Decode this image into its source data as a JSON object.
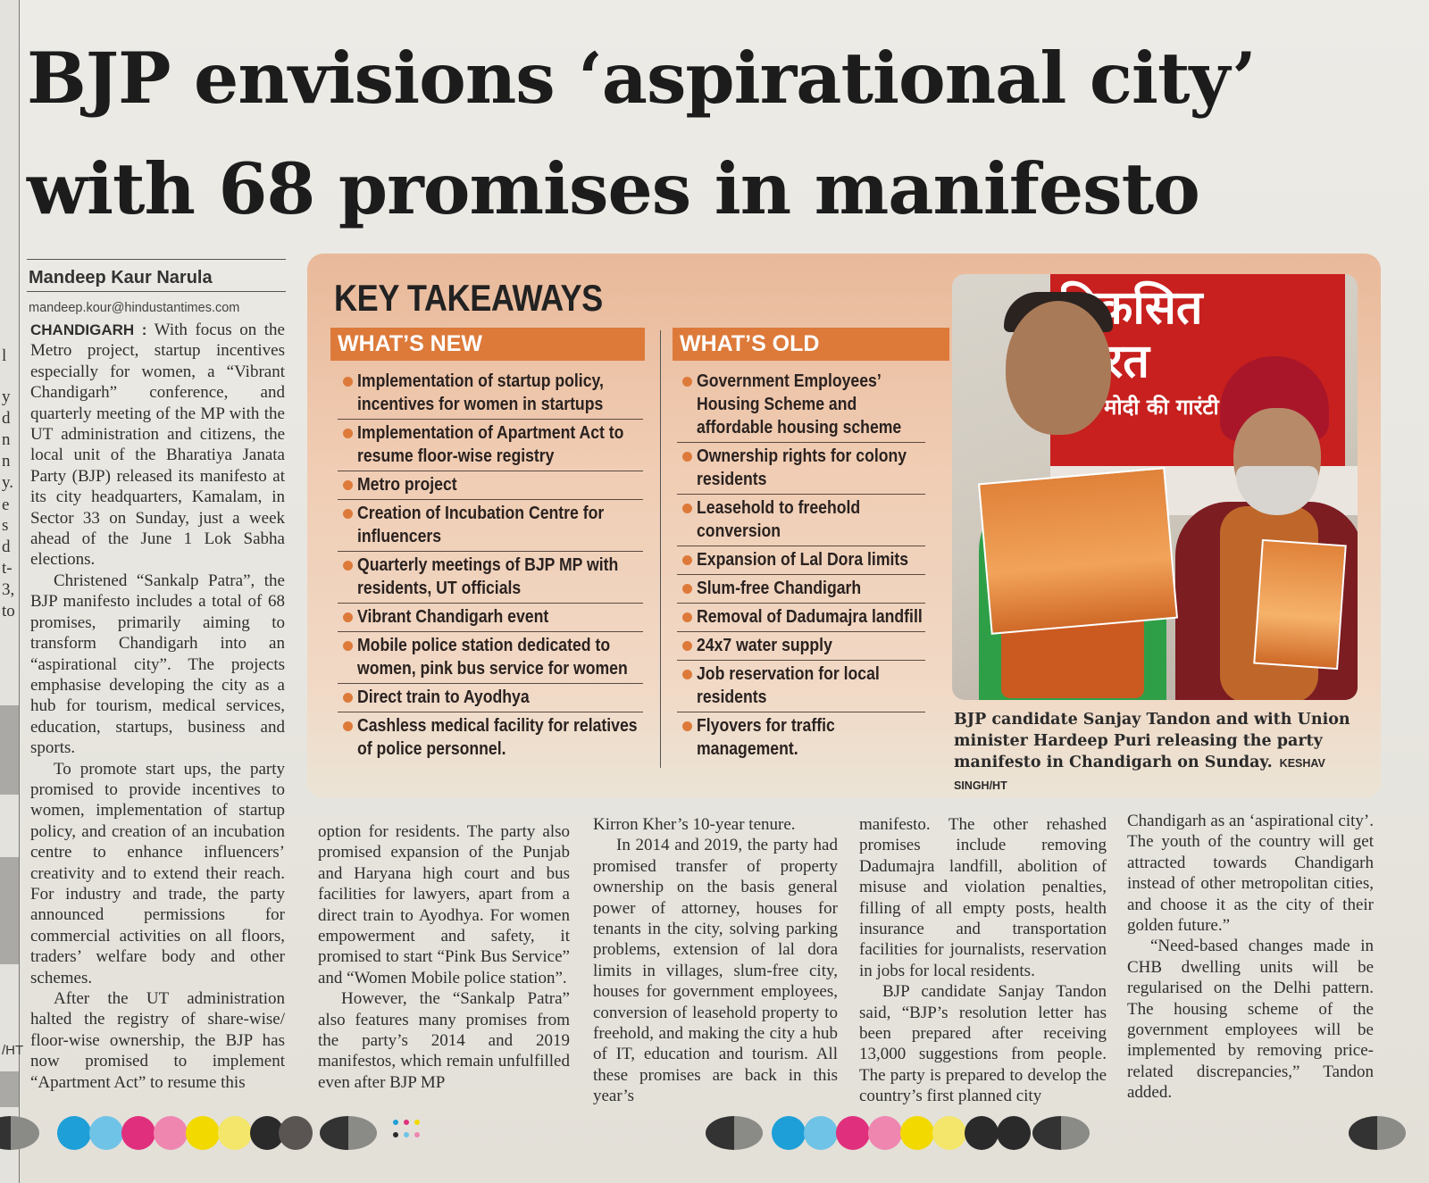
{
  "headline": {
    "line1": "BJP envisions ‘aspirational city’",
    "line2": "with 68 promises in manifesto"
  },
  "byline": {
    "name": "Mandeep Kaur Narula",
    "email": "mandeep.kour@hindustantimes.com"
  },
  "article": {
    "dateline": "CHANDIGARH :",
    "col1": [
      "With focus on the Metro project, startup incentives especially for women, a “Vibrant Chandigarh” conference, and quarterly meeting of the MP with the UT administration and citizens, the local unit of the Bharatiya Janata Party (BJP) released its manifesto at its city headquarters, Kamalam, in Sector 33 on Sunday, just a week ahead of the June 1 Lok Sabha elections.",
      "Christened “Sankalp Patra”, the BJP manifesto includes a total of 68 promises, primarily aiming to transform Chandigarh into an “aspirational city”. The projects emphasise developing the city as a hub for tourism, medical services, education, startups, business and sports.",
      "To promote start ups, the party promised to provide incentives to women, implementation of startup policy, and creation of an incubation centre to enhance influencers’ creativity and to extend their reach. For industry and trade, the party announced permissions for commercial activities on all floors, traders’ welfare body and other schemes.",
      "After the UT administration halted the registry of share-wise/ floor-wise ownership, the BJP has now promised to implement “Apartment Act” to resume this"
    ],
    "col2": [
      "option for residents. The party also promised expansion of the Punjab and Haryana high court and bus facilities for lawyers, apart from a direct train to Ayodhya. For women empowerment and safety, it promised to start “Pink Bus Service” and “Women Mobile police station”.",
      "However, the “Sankalp Patra” also features many promises from the party’s 2014 and 2019 manifestos, which remain unfulfilled even after BJP MP"
    ],
    "col3": [
      "Kirron Kher’s 10-year tenure.",
      "In 2014 and 2019, the party had promised transfer of property ownership on the basis general power of attorney, houses for tenants in the city, solving parking problems, extension of lal dora limits in villages, slum-free city, houses for government employees, conversion of leasehold property to freehold, and making the city a hub of IT, education and tourism. All these promises are back in this year’s"
    ],
    "col4": [
      "manifesto. The other rehashed promises include removing Dadumajra landfill, abolition of misuse and violation penalties, filling of all empty posts, health insurance and transportation facilities for journalists, reservation in jobs for local residents.",
      "BJP candidate Sanjay Tandon said, “BJP’s resolution letter has been prepared after receiving 13,000 suggestions from people. The party is prepared to develop the country’s first planned city"
    ],
    "col5": [
      "Chandigarh as an ‘aspirational city’. The youth of the country will get attracted towards Chandigarh instead of other metropolitan cities, and choose it as the city of their golden future.”",
      "“Need-based changes made in CHB dwelling units will be regularised on the Delhi pattern. The housing scheme of the government employees will be implemented by removing price-related discrepancies,” Tandon added."
    ]
  },
  "takeaways": {
    "title": "KEY TAKEAWAYS",
    "new_heading": "WHAT’S NEW",
    "old_heading": "WHAT’S OLD",
    "new_items": [
      "Implementation of startup policy, incentives for women in startups",
      "Implementation of Apartment Act to resume floor-wise registry",
      "Metro project",
      "Creation of Incubation Centre for influencers",
      "Quarterly meetings of BJP MP with residents, UT officials",
      "Vibrant Chandigarh event",
      "Mobile police station dedicated to women, pink bus service for women",
      "Direct train to Ayodhya",
      "Cashless medical facility for relatives of police personnel."
    ],
    "old_items": [
      "Government Employees’ Housing Scheme and affordable housing scheme",
      "Ownership rights for colony residents",
      "Leasehold to freehold conversion",
      "Expansion of Lal Dora limits",
      "Slum-free Chandigarh",
      "Removal of Dadumajra landfill",
      "24x7 water supply",
      "Job reservation for local residents",
      "Flyovers for traffic management."
    ],
    "accent_color": "#dd7a3a"
  },
  "photo": {
    "banner_line1": "विकसित",
    "banner_line2": "भारत",
    "banner_line3": "मोदी की गारंटी",
    "caption": "BJP candidate Sanjay Tandon and with Union minister Hardeep Puri releasing the party manifesto in Chandigarh on Sunday.",
    "credit": "KESHAV SINGH/HT"
  },
  "margin": {
    "left_fragments": [
      "l",
      "y",
      "d",
      "n",
      "n",
      "y.",
      "e",
      "s",
      "d",
      "t-",
      "3,",
      "to"
    ],
    "left_credit": "/HT"
  }
}
